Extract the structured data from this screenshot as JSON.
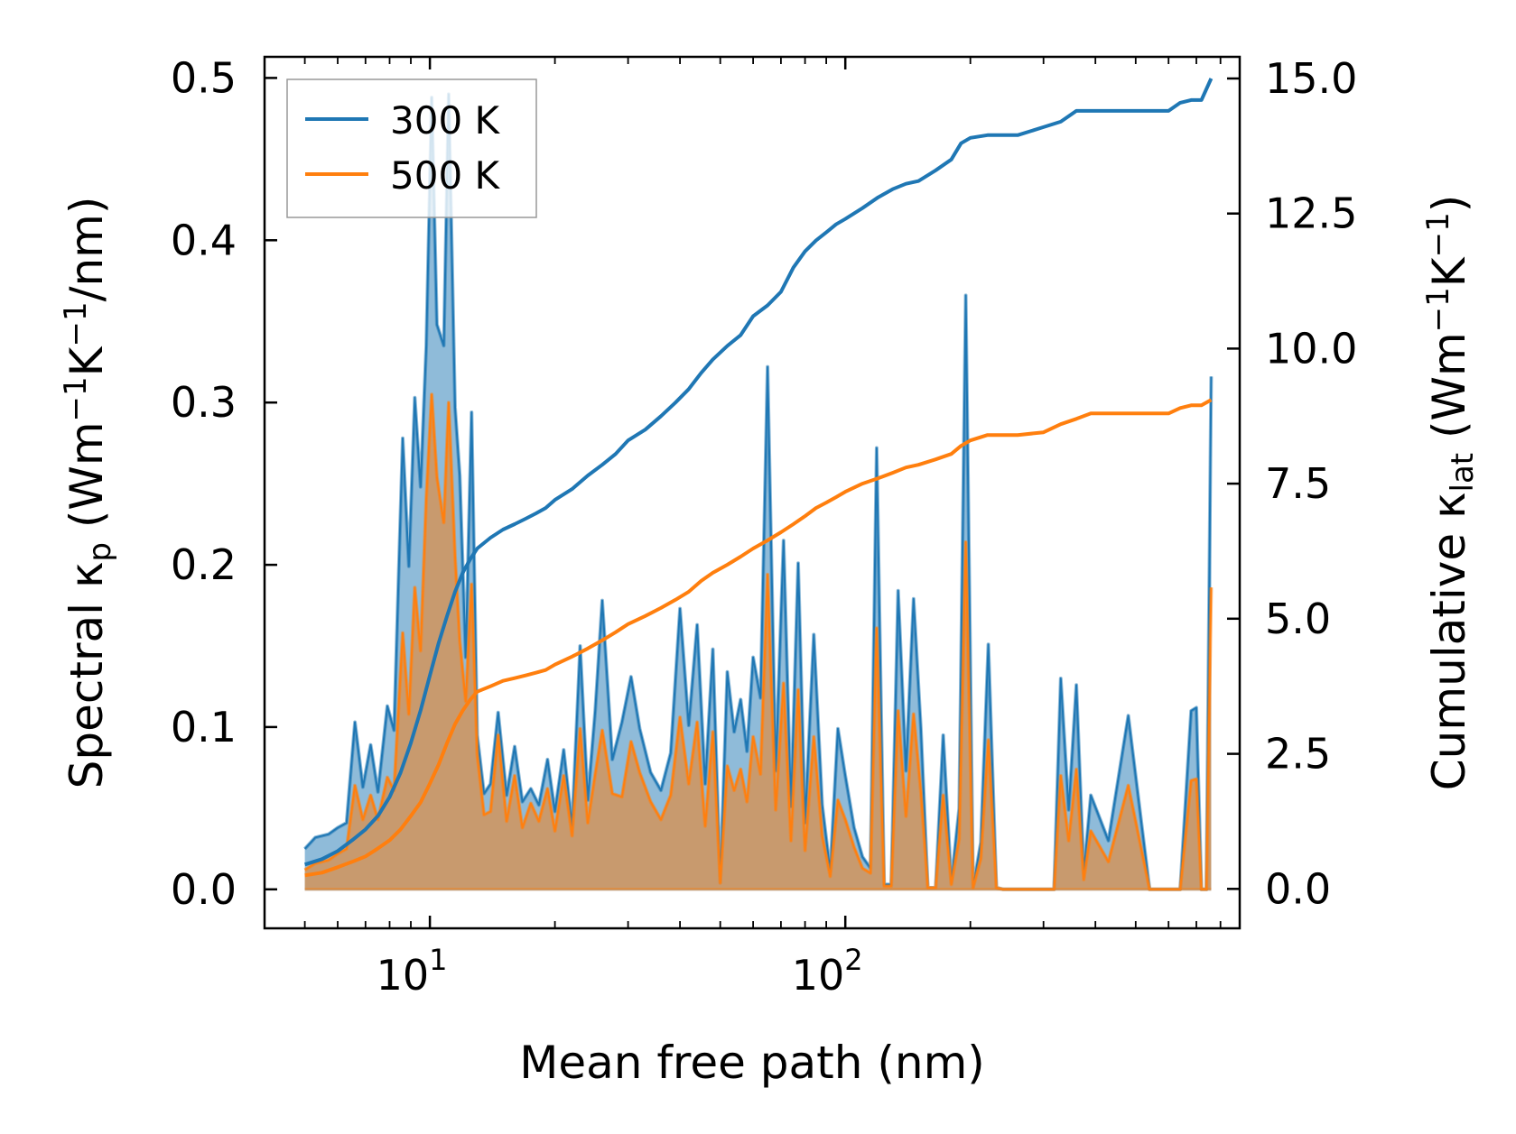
{
  "chart_data": {
    "type": "line",
    "xscale": "log",
    "xlabel": "Mean free path (nm)",
    "ylabel_left": {
      "main": "Spectral κ",
      "sub": "p",
      "units_open": " (Wm",
      "sup1": "−1",
      "mid": "K",
      "sup2": "−1",
      "units_close": "/nm)"
    },
    "ylabel_right": {
      "main": "Cumulative κ",
      "sub": "lat",
      "units_open": " (Wm",
      "sup1": "−1",
      "mid": "K",
      "sup2": "−1",
      "units_close": ")"
    },
    "xlim": [
      4.0,
      890
    ],
    "ylim_left": [
      -0.024,
      0.513
    ],
    "ylim_right": [
      -0.73,
      15.4
    ],
    "x_ticks": [
      {
        "value": 10,
        "base": "10",
        "exp": "1"
      },
      {
        "value": 100,
        "base": "10",
        "exp": "2"
      }
    ],
    "y_ticks_left": [
      "0.0",
      "0.1",
      "0.2",
      "0.3",
      "0.4",
      "0.5"
    ],
    "y_ticks_right": [
      "0.0",
      "2.5",
      "5.0",
      "7.5",
      "10.0",
      "12.5",
      "15.0"
    ],
    "legend": {
      "location": "top-left",
      "entries": [
        "300 K",
        "500 K"
      ]
    },
    "colors": {
      "300 K": "#1f77b4",
      "500 K": "#ff7f0e",
      "fill_300": "#1f77b4",
      "fill_500": "#d2945a"
    },
    "series": [
      {
        "name": "300 K",
        "axis": "left",
        "kind": "spectral",
        "x": [
          5.0,
          5.3,
          5.7,
          6.0,
          6.3,
          6.6,
          6.9,
          7.2,
          7.5,
          7.9,
          8.2,
          8.6,
          8.9,
          9.2,
          9.5,
          9.8,
          10.1,
          10.4,
          10.8,
          11.1,
          11.5,
          11.8,
          12.2,
          12.6,
          13.0,
          13.5,
          14.0,
          14.6,
          15.3,
          16.0,
          16.7,
          17.5,
          18.3,
          19.2,
          20.0,
          21.0,
          22.0,
          23.0,
          24.0,
          25.0,
          26.0,
          27.5,
          29.0,
          30.5,
          32.0,
          34.0,
          36.0,
          38.0,
          40.0,
          42.0,
          44.0,
          46.0,
          48.0,
          50.0,
          52.0,
          54.0,
          56.0,
          58.0,
          60.0,
          62.5,
          65.0,
          68.0,
          71.0,
          74.0,
          77.0,
          80.0,
          84.0,
          88.0,
          92.0,
          96.0,
          100.0,
          105.0,
          110.0,
          115.0,
          119.0,
          124.0,
          129.0,
          134.0,
          140.0,
          146.0,
          152.0,
          158.0,
          165.0,
          172.0,
          180.0,
          188.0,
          195.0,
          203.0,
          212.0,
          221.0,
          231.0,
          240.0,
          260.0,
          280.0,
          300.0,
          318.0,
          330.0,
          345.0,
          360.0,
          375.0,
          390.0,
          430.0,
          480.0,
          540.0,
          600.0,
          640.0,
          680.0,
          700.0,
          720.0,
          740.0,
          760.0
        ],
        "values": [
          0.025,
          0.032,
          0.034,
          0.038,
          0.041,
          0.103,
          0.063,
          0.089,
          0.06,
          0.113,
          0.098,
          0.278,
          0.199,
          0.303,
          0.248,
          0.335,
          0.488,
          0.348,
          0.335,
          0.49,
          0.297,
          0.255,
          0.143,
          0.294,
          0.095,
          0.059,
          0.065,
          0.109,
          0.058,
          0.088,
          0.054,
          0.062,
          0.052,
          0.08,
          0.048,
          0.086,
          0.039,
          0.15,
          0.055,
          0.11,
          0.178,
          0.08,
          0.103,
          0.131,
          0.099,
          0.072,
          0.061,
          0.084,
          0.173,
          0.101,
          0.163,
          0.065,
          0.148,
          0.004,
          0.134,
          0.097,
          0.117,
          0.085,
          0.143,
          0.118,
          0.322,
          0.073,
          0.215,
          0.051,
          0.201,
          0.041,
          0.157,
          0.052,
          0.011,
          0.099,
          0.07,
          0.038,
          0.02,
          0.013,
          0.272,
          0.003,
          0.003,
          0.184,
          0.073,
          0.179,
          0.099,
          0.001,
          0.001,
          0.095,
          0.004,
          0.05,
          0.366,
          0.001,
          0.029,
          0.151,
          0.001,
          0.0,
          0.0,
          0.0,
          0.0,
          0.0,
          0.13,
          0.049,
          0.126,
          0.01,
          0.058,
          0.03,
          0.107,
          0.0,
          0.0,
          0.0,
          0.11,
          0.112,
          0.0,
          0.0,
          0.316
        ],
        "lower_values": [
          0.0,
          0.0,
          0.0,
          0.0,
          0.0,
          0.0,
          0.0,
          0.0,
          0.0,
          0.0,
          0.0,
          0.0,
          0.0,
          0.0,
          0.0,
          0.0,
          0.0,
          0.0,
          0.0,
          0.0,
          0.0,
          0.0,
          0.0,
          0.0,
          0.0,
          0.0,
          0.0,
          0.0,
          0.0,
          0.0,
          0.0,
          0.0,
          0.0,
          0.0,
          0.0,
          0.0,
          0.0,
          0.0,
          0.0,
          0.0,
          0.0,
          0.0,
          0.0,
          0.0,
          0.0,
          0.0,
          0.0,
          0.0,
          0.0,
          0.0,
          0.0,
          0.0,
          0.0,
          0.0,
          0.0,
          0.0,
          0.0,
          0.0,
          0.0,
          0.0,
          0.0,
          0.0,
          0.0,
          0.0,
          0.0,
          0.0,
          0.0,
          0.0,
          0.0,
          0.0,
          0.0,
          0.0,
          0.0,
          0.0,
          0.0,
          0.0,
          0.0,
          0.0,
          0.0,
          0.0,
          0.0,
          0.0,
          0.0,
          0.0,
          0.0,
          0.0,
          0.0,
          0.0,
          0.0,
          0.0,
          0.0,
          0.0,
          0.0,
          0.0,
          0.0,
          0.0,
          0.0,
          0.0,
          0.0,
          0.0,
          0.0,
          0.0,
          0.0,
          0.0,
          0.0,
          0.0,
          0.0,
          0.0,
          0.0,
          0.0,
          0.0
        ]
      },
      {
        "name": "500 K",
        "axis": "left",
        "kind": "spectral",
        "x": [
          5.0,
          5.3,
          5.7,
          6.0,
          6.3,
          6.6,
          6.9,
          7.2,
          7.5,
          7.9,
          8.2,
          8.6,
          8.9,
          9.2,
          9.5,
          9.8,
          10.1,
          10.4,
          10.8,
          11.1,
          11.5,
          11.8,
          12.2,
          12.6,
          13.0,
          13.5,
          14.0,
          14.6,
          15.3,
          16.0,
          16.7,
          17.5,
          18.3,
          19.2,
          20.0,
          21.0,
          22.0,
          23.0,
          24.0,
          25.0,
          26.0,
          27.5,
          29.0,
          30.5,
          32.0,
          34.0,
          36.0,
          38.0,
          40.0,
          42.0,
          44.0,
          46.0,
          48.0,
          50.0,
          52.0,
          54.0,
          56.0,
          58.0,
          60.0,
          62.5,
          65.0,
          68.0,
          71.0,
          74.0,
          77.0,
          80.0,
          84.0,
          88.0,
          92.0,
          96.0,
          100.0,
          105.0,
          110.0,
          115.0,
          119.0,
          124.0,
          129.0,
          134.0,
          140.0,
          146.0,
          152.0,
          158.0,
          165.0,
          172.0,
          180.0,
          188.0,
          195.0,
          203.0,
          212.0,
          221.0,
          231.0,
          240.0,
          260.0,
          280.0,
          300.0,
          318.0,
          330.0,
          345.0,
          360.0,
          375.0,
          390.0,
          430.0,
          480.0,
          540.0,
          600.0,
          640.0,
          680.0,
          700.0,
          720.0,
          740.0,
          760.0
        ],
        "values": [
          0.012,
          0.016,
          0.018,
          0.022,
          0.025,
          0.064,
          0.043,
          0.058,
          0.043,
          0.069,
          0.061,
          0.158,
          0.108,
          0.186,
          0.147,
          0.241,
          0.305,
          0.254,
          0.226,
          0.3,
          0.205,
          0.153,
          0.116,
          0.188,
          0.083,
          0.046,
          0.048,
          0.095,
          0.042,
          0.07,
          0.038,
          0.053,
          0.042,
          0.062,
          0.036,
          0.07,
          0.033,
          0.099,
          0.041,
          0.071,
          0.098,
          0.059,
          0.057,
          0.091,
          0.072,
          0.054,
          0.043,
          0.058,
          0.106,
          0.065,
          0.103,
          0.039,
          0.097,
          0.004,
          0.076,
          0.061,
          0.074,
          0.054,
          0.094,
          0.071,
          0.194,
          0.049,
          0.127,
          0.03,
          0.123,
          0.024,
          0.094,
          0.033,
          0.008,
          0.055,
          0.043,
          0.026,
          0.013,
          0.01,
          0.161,
          0.002,
          0.002,
          0.11,
          0.045,
          0.108,
          0.06,
          0.001,
          0.001,
          0.058,
          0.003,
          0.031,
          0.214,
          0.001,
          0.019,
          0.092,
          0.001,
          0.0,
          0.0,
          0.0,
          0.0,
          0.0,
          0.07,
          0.03,
          0.074,
          0.006,
          0.036,
          0.017,
          0.064,
          0.0,
          0.0,
          0.0,
          0.067,
          0.068,
          0.0,
          0.0,
          0.186
        ],
        "lower_values": [
          0.0,
          0.0,
          0.0,
          0.0,
          0.0,
          0.0,
          0.0,
          0.0,
          0.0,
          0.0,
          0.0,
          0.0,
          0.0,
          0.0,
          0.0,
          0.0,
          0.0,
          0.0,
          0.0,
          0.0,
          0.0,
          0.0,
          0.0,
          0.0,
          0.0,
          0.0,
          0.0,
          0.0,
          0.0,
          0.0,
          0.0,
          0.0,
          0.0,
          0.0,
          0.0,
          0.0,
          0.0,
          0.0,
          0.0,
          0.0,
          0.0,
          0.0,
          0.0,
          0.0,
          0.0,
          0.0,
          0.0,
          0.0,
          0.0,
          0.0,
          0.0,
          0.0,
          0.0,
          0.0,
          0.0,
          0.0,
          0.0,
          0.0,
          0.0,
          0.0,
          0.0,
          0.0,
          0.0,
          0.0,
          0.0,
          0.0,
          0.0,
          0.0,
          0.0,
          0.0,
          0.0,
          0.0,
          0.0,
          0.0,
          0.0,
          0.0,
          0.0,
          0.0,
          0.0,
          0.0,
          0.0,
          0.0,
          0.0,
          0.0,
          0.0,
          0.0,
          0.0,
          0.0,
          0.0,
          0.0,
          0.0,
          0.0,
          0.0,
          0.0,
          0.0,
          0.0,
          0.0,
          0.0,
          0.0,
          0.0,
          0.0,
          0.0,
          0.0,
          0.0,
          0.0,
          0.0,
          0.0,
          0.0,
          0.0,
          0.0,
          0.0
        ]
      },
      {
        "name": "300 K",
        "axis": "right",
        "kind": "cumulative",
        "x": [
          5.0,
          5.5,
          6.0,
          6.5,
          7.0,
          7.5,
          8.0,
          8.5,
          9.0,
          9.5,
          10.0,
          10.5,
          11.0,
          11.5,
          12.0,
          12.5,
          13.0,
          14.0,
          15.0,
          16.0,
          17.0,
          18.0,
          19.0,
          20.0,
          22.0,
          24.0,
          26.0,
          28.0,
          30.0,
          33.0,
          36.0,
          39.0,
          42.0,
          45.0,
          48.0,
          52.0,
          56.0,
          60.0,
          65.0,
          70.0,
          75.0,
          80.0,
          85.0,
          90.0,
          95.0,
          100.0,
          110.0,
          120.0,
          130.0,
          140.0,
          150.0,
          165.0,
          180.0,
          190.0,
          200.0,
          220.0,
          260.0,
          300.0,
          330.0,
          360.0,
          390.0,
          450.0,
          500.0,
          600.0,
          640.0,
          680.0,
          720.0,
          760.0
        ],
        "values": [
          0.45,
          0.55,
          0.7,
          0.9,
          1.1,
          1.35,
          1.7,
          2.15,
          2.7,
          3.3,
          3.95,
          4.55,
          5.05,
          5.5,
          5.85,
          6.1,
          6.3,
          6.5,
          6.65,
          6.75,
          6.85,
          6.95,
          7.05,
          7.2,
          7.4,
          7.65,
          7.85,
          8.05,
          8.3,
          8.5,
          8.75,
          9.0,
          9.25,
          9.55,
          9.8,
          10.05,
          10.25,
          10.6,
          10.8,
          11.05,
          11.5,
          11.8,
          12.0,
          12.15,
          12.3,
          12.4,
          12.6,
          12.8,
          12.95,
          13.05,
          13.1,
          13.3,
          13.5,
          13.8,
          13.9,
          13.95,
          13.95,
          14.1,
          14.2,
          14.4,
          14.4,
          14.4,
          14.4,
          14.4,
          14.55,
          14.6,
          14.6,
          15.0
        ]
      },
      {
        "name": "500 K",
        "axis": "right",
        "kind": "cumulative",
        "x": [
          5.0,
          5.5,
          6.0,
          6.5,
          7.0,
          7.5,
          8.0,
          8.5,
          9.0,
          9.5,
          10.0,
          10.5,
          11.0,
          11.5,
          12.0,
          12.5,
          13.0,
          14.0,
          15.0,
          16.0,
          17.0,
          18.0,
          19.0,
          20.0,
          22.0,
          24.0,
          26.0,
          28.0,
          30.0,
          33.0,
          36.0,
          39.0,
          42.0,
          45.0,
          48.0,
          52.0,
          56.0,
          60.0,
          65.0,
          70.0,
          75.0,
          80.0,
          85.0,
          90.0,
          95.0,
          100.0,
          110.0,
          120.0,
          130.0,
          140.0,
          150.0,
          165.0,
          180.0,
          190.0,
          200.0,
          220.0,
          260.0,
          300.0,
          330.0,
          360.0,
          390.0,
          450.0,
          500.0,
          600.0,
          640.0,
          680.0,
          720.0,
          760.0
        ],
        "values": [
          0.25,
          0.3,
          0.4,
          0.5,
          0.6,
          0.75,
          0.9,
          1.1,
          1.35,
          1.6,
          1.95,
          2.3,
          2.7,
          3.05,
          3.3,
          3.5,
          3.65,
          3.75,
          3.85,
          3.9,
          3.95,
          4.0,
          4.05,
          4.15,
          4.3,
          4.45,
          4.6,
          4.75,
          4.9,
          5.05,
          5.2,
          5.35,
          5.5,
          5.7,
          5.85,
          6.0,
          6.15,
          6.3,
          6.45,
          6.6,
          6.75,
          6.9,
          7.05,
          7.15,
          7.25,
          7.35,
          7.5,
          7.6,
          7.7,
          7.8,
          7.85,
          7.95,
          8.05,
          8.2,
          8.3,
          8.4,
          8.4,
          8.45,
          8.6,
          8.7,
          8.8,
          8.8,
          8.8,
          8.8,
          8.9,
          8.95,
          8.95,
          9.05
        ]
      }
    ]
  }
}
